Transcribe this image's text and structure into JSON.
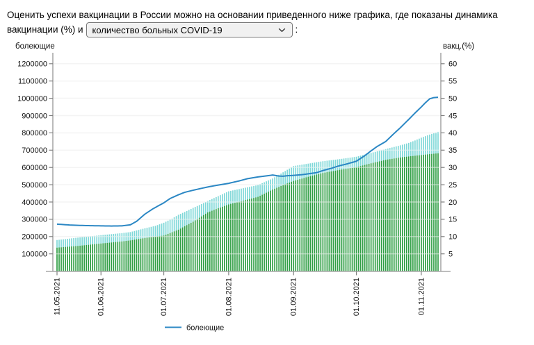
{
  "header": {
    "line1": "Оценить успехи вакцинации в России можно на основании приведенного ниже графика, где показаны динамика",
    "line2_prefix": "вакцинации (%) и",
    "colon": ":",
    "select": {
      "value": "количество больных COVID-19"
    }
  },
  "chart_data": {
    "type": "line+bar",
    "x_axis": {
      "start_date": "11.05.2021",
      "end_date": "09.11.2021",
      "total_days": 182,
      "tick_labels": [
        "11.05.2021",
        "01.06.2021",
        "01.07.2021",
        "01.08.2021",
        "01.09.2021",
        "01.10.2021",
        "01.11.2021"
      ],
      "tick_day_offsets": [
        0,
        21,
        51,
        82,
        113,
        143,
        174
      ]
    },
    "left_axis": {
      "title": "болеющие",
      "min": 0,
      "max": 1255000,
      "ticks": [
        100000,
        200000,
        300000,
        400000,
        500000,
        600000,
        700000,
        800000,
        900000,
        1000000,
        1100000,
        1200000
      ]
    },
    "right_axis": {
      "title": "вакц.(%)",
      "min": 0,
      "max": 62.75,
      "ticks": [
        5,
        10,
        15,
        20,
        25,
        30,
        35,
        40,
        45,
        50,
        55,
        60
      ]
    },
    "grid": true,
    "colors": {
      "sick_line": "#2b87c4",
      "bars_light": "#7fd8d8",
      "bars_dark": "#2f9e44",
      "gridline": "#e9e9e9",
      "spine": "#a9a9a9",
      "tick": "#808080"
    },
    "series": {
      "sick_line": {
        "legend_label": "болеющие",
        "axis": "left",
        "anchors": [
          [
            0,
            272000
          ],
          [
            6,
            267000
          ],
          [
            10,
            265000
          ],
          [
            16,
            263000
          ],
          [
            21,
            262000
          ],
          [
            26,
            261000
          ],
          [
            31,
            262000
          ],
          [
            35,
            268000
          ],
          [
            38,
            288000
          ],
          [
            42,
            330000
          ],
          [
            46,
            362000
          ],
          [
            51,
            395000
          ],
          [
            54,
            420000
          ],
          [
            58,
            442000
          ],
          [
            61,
            456000
          ],
          [
            65,
            468000
          ],
          [
            69,
            479000
          ],
          [
            72,
            487000
          ],
          [
            77,
            498000
          ],
          [
            82,
            508000
          ],
          [
            87,
            522000
          ],
          [
            91,
            535000
          ],
          [
            96,
            545000
          ],
          [
            100,
            551000
          ],
          [
            103,
            556000
          ],
          [
            106,
            550000
          ],
          [
            108,
            549000
          ],
          [
            110,
            552000
          ],
          [
            113,
            554000
          ],
          [
            117,
            558000
          ],
          [
            120,
            563000
          ],
          [
            124,
            570000
          ],
          [
            127,
            582000
          ],
          [
            131,
            595000
          ],
          [
            135,
            610000
          ],
          [
            139,
            622000
          ],
          [
            143,
            636000
          ],
          [
            147,
            668000
          ],
          [
            150,
            696000
          ],
          [
            153,
            722000
          ],
          [
            157,
            750000
          ],
          [
            160,
            785000
          ],
          [
            164,
            830000
          ],
          [
            168,
            878000
          ],
          [
            171,
            915000
          ],
          [
            174,
            950000
          ],
          [
            176,
            975000
          ],
          [
            178,
            997000
          ],
          [
            180,
            1004000
          ],
          [
            182,
            1006000
          ]
        ]
      },
      "bars_light": {
        "axis": "right",
        "anchors": [
          [
            0,
            9.0
          ],
          [
            10,
            9.7
          ],
          [
            21,
            10.4
          ],
          [
            31,
            11.0
          ],
          [
            35,
            11.3
          ],
          [
            42,
            12.4
          ],
          [
            47,
            13.1
          ],
          [
            51,
            14.0
          ],
          [
            55,
            15.2
          ],
          [
            58,
            16.3
          ],
          [
            62,
            17.4
          ],
          [
            65,
            18.3
          ],
          [
            69,
            19.4
          ],
          [
            72,
            20.3
          ],
          [
            77,
            21.7
          ],
          [
            82,
            23.1
          ],
          [
            89,
            24.0
          ],
          [
            96,
            24.9
          ],
          [
            103,
            26.8
          ],
          [
            108,
            28.6
          ],
          [
            113,
            30.4
          ],
          [
            120,
            31.1
          ],
          [
            127,
            31.8
          ],
          [
            135,
            32.4
          ],
          [
            143,
            33.1
          ],
          [
            150,
            34.2
          ],
          [
            157,
            35.3
          ],
          [
            164,
            36.4
          ],
          [
            168,
            37.1
          ],
          [
            171,
            37.8
          ],
          [
            174,
            38.6
          ],
          [
            178,
            39.5
          ],
          [
            182,
            40.3
          ]
        ]
      },
      "bars_dark": {
        "axis": "right",
        "anchors": [
          [
            0,
            6.8
          ],
          [
            10,
            7.3
          ],
          [
            21,
            8.0
          ],
          [
            31,
            8.6
          ],
          [
            35,
            8.9
          ],
          [
            42,
            9.6
          ],
          [
            51,
            10.3
          ],
          [
            58,
            12.0
          ],
          [
            65,
            14.3
          ],
          [
            72,
            17.0
          ],
          [
            77,
            18.2
          ],
          [
            82,
            19.3
          ],
          [
            89,
            20.4
          ],
          [
            96,
            21.5
          ],
          [
            103,
            23.6
          ],
          [
            108,
            24.9
          ],
          [
            113,
            26.1
          ],
          [
            120,
            27.3
          ],
          [
            127,
            28.4
          ],
          [
            135,
            29.3
          ],
          [
            143,
            30.1
          ],
          [
            150,
            31.2
          ],
          [
            157,
            32.2
          ],
          [
            164,
            32.9
          ],
          [
            174,
            33.6
          ],
          [
            182,
            34.1
          ]
        ]
      }
    },
    "legend": {
      "position": "bottom-left-of-center",
      "items": [
        {
          "label": "болеющие",
          "color": "#2b87c4",
          "marker": "line"
        }
      ]
    }
  }
}
